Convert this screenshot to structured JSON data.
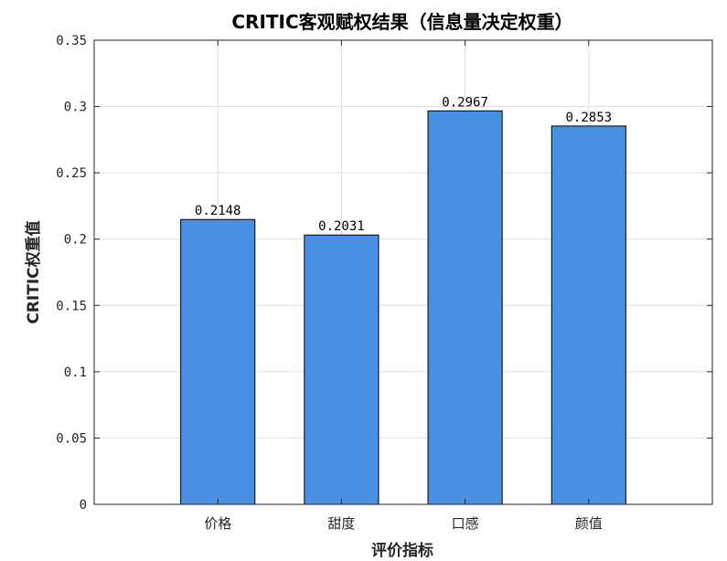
{
  "chart_data": {
    "type": "bar",
    "title": "CRITIC客观赋权结果（信息量决定权重）",
    "xlabel": "评价指标",
    "ylabel": "CRITIC权重值",
    "categories": [
      "价格",
      "甜度",
      "口感",
      "颜值"
    ],
    "values": [
      0.2148,
      0.2031,
      0.2967,
      0.2853
    ],
    "data_labels": [
      "0.2148",
      "0.2031",
      "0.2967",
      "0.2853"
    ],
    "ylim": [
      0,
      0.35
    ],
    "yticks": [
      0,
      0.05,
      0.1,
      0.15,
      0.2,
      0.25,
      0.3,
      0.35
    ],
    "ytick_labels": [
      "0",
      "0.05",
      "0.1",
      "0.15",
      "0.2",
      "0.25",
      "0.3",
      "0.35"
    ],
    "xlim": [
      0,
      5
    ],
    "grid": true,
    "bar_color": "#4a90e2",
    "edge_color": "#000000"
  }
}
